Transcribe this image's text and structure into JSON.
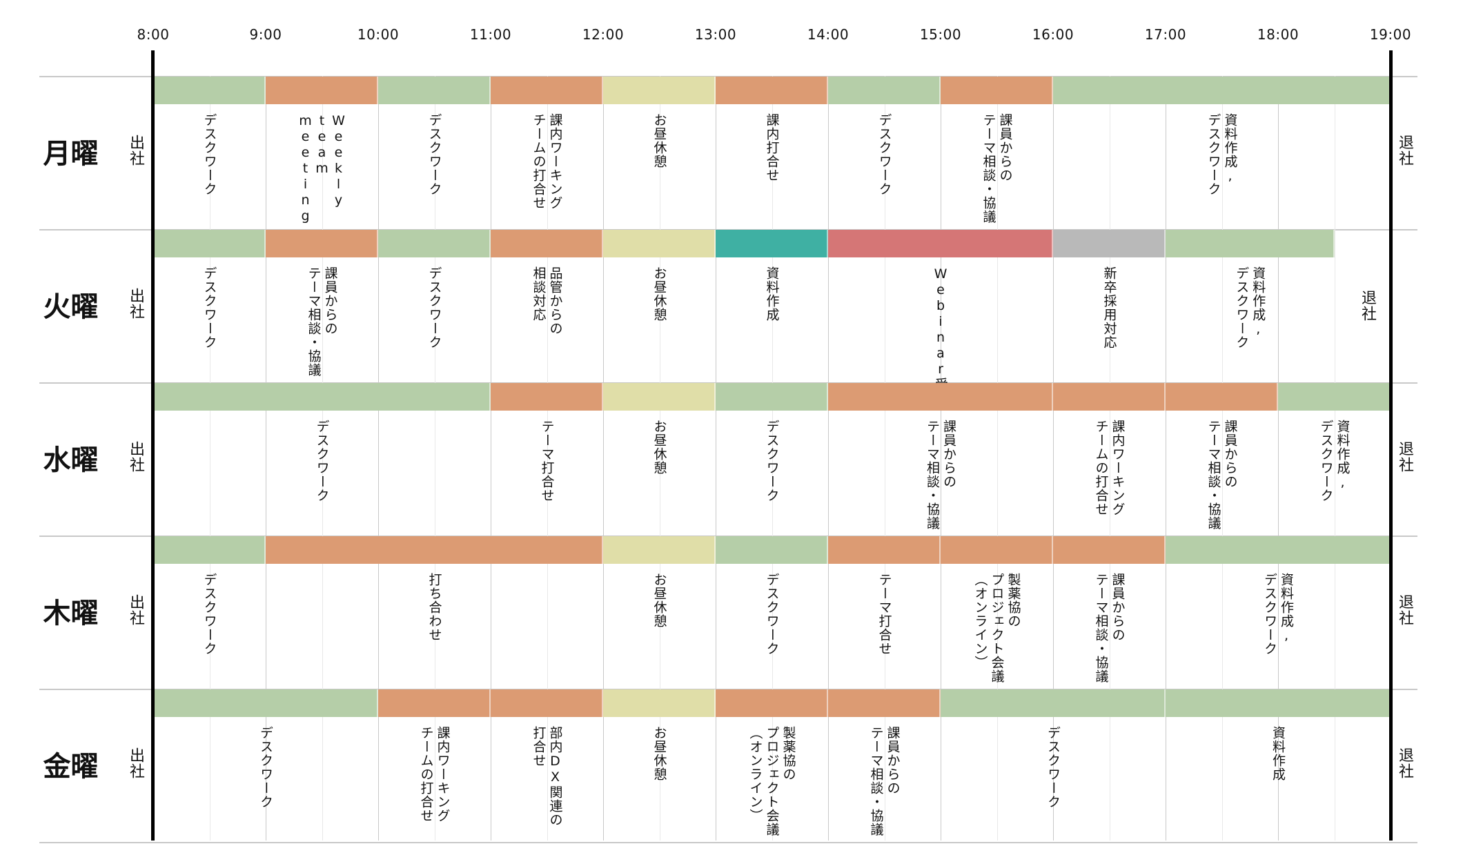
{
  "times": [
    "8:00",
    "9:00",
    "10:00",
    "11:00",
    "12:00",
    "13:00",
    "14:00",
    "15:00",
    "16:00",
    "17:00",
    "18:00",
    "19:00"
  ],
  "legend_colors": {
    "desk": "#b5cea8",
    "meeting": "#dc9b73",
    "lunch": "#e0dea8",
    "docs": "#3fb0a3",
    "webinar": "#d57676",
    "recruit": "#b9b9b9"
  },
  "days": [
    {
      "name": "月曜",
      "arrive": "出社",
      "leave": "退社",
      "segments": [
        {
          "start": 8,
          "end": 9,
          "type": "desk"
        },
        {
          "start": 9,
          "end": 10,
          "type": "meeting"
        },
        {
          "start": 10,
          "end": 11,
          "type": "desk"
        },
        {
          "start": 11,
          "end": 12,
          "type": "meeting"
        },
        {
          "start": 12,
          "end": 13,
          "type": "lunch"
        },
        {
          "start": 13,
          "end": 14,
          "type": "meeting"
        },
        {
          "start": 14,
          "end": 15,
          "type": "desk"
        },
        {
          "start": 15,
          "end": 16,
          "type": "meeting"
        },
        {
          "start": 16,
          "end": 19,
          "type": "desk"
        }
      ],
      "labels": [
        {
          "at": 8.5,
          "lines": [
            "デスクワーク"
          ]
        },
        {
          "at": 9.5,
          "lines": [
            "Weekly",
            "team",
            "meeting"
          ]
        },
        {
          "at": 10.5,
          "lines": [
            "デスクワーク"
          ]
        },
        {
          "at": 11.5,
          "lines": [
            "課内ワーキング",
            "チームの打合せ"
          ]
        },
        {
          "at": 12.5,
          "lines": [
            "お昼休憩"
          ]
        },
        {
          "at": 13.5,
          "lines": [
            "課内打合せ"
          ]
        },
        {
          "at": 14.5,
          "lines": [
            "デスクワーク"
          ]
        },
        {
          "at": 15.5,
          "lines": [
            "課員からの",
            "テーマ相談・協議"
          ]
        },
        {
          "at": 17.5,
          "lines": [
            "資料作成,",
            "デスクワーク"
          ]
        }
      ]
    },
    {
      "name": "火曜",
      "arrive": "出社",
      "leave": "退社",
      "leave_at": 18.65,
      "segments": [
        {
          "start": 8,
          "end": 9,
          "type": "desk"
        },
        {
          "start": 9,
          "end": 10,
          "type": "meeting"
        },
        {
          "start": 10,
          "end": 11,
          "type": "desk"
        },
        {
          "start": 11,
          "end": 12,
          "type": "meeting"
        },
        {
          "start": 12,
          "end": 13,
          "type": "lunch"
        },
        {
          "start": 13,
          "end": 14,
          "type": "docs"
        },
        {
          "start": 14,
          "end": 16,
          "type": "webinar"
        },
        {
          "start": 16,
          "end": 17,
          "type": "recruit"
        },
        {
          "start": 17,
          "end": 18.5,
          "type": "desk"
        }
      ],
      "labels": [
        {
          "at": 8.5,
          "lines": [
            "デスクワーク"
          ]
        },
        {
          "at": 9.5,
          "lines": [
            "課員からの",
            "テーマ相談・協議"
          ]
        },
        {
          "at": 10.5,
          "lines": [
            "デスクワーク"
          ]
        },
        {
          "at": 11.5,
          "lines": [
            "品管からの",
            "相談対応"
          ]
        },
        {
          "at": 12.5,
          "lines": [
            "お昼休憩"
          ]
        },
        {
          "at": 13.5,
          "lines": [
            "資料作成"
          ]
        },
        {
          "at": 15,
          "lines": [
            "Webinar受講"
          ]
        },
        {
          "at": 16.5,
          "lines": [
            "新卒採用対応"
          ]
        },
        {
          "at": 17.75,
          "lines": [
            "資料作成,",
            "デスクワーク"
          ]
        }
      ]
    },
    {
      "name": "水曜",
      "arrive": "出社",
      "leave": "退社",
      "segments": [
        {
          "start": 8,
          "end": 11,
          "type": "desk"
        },
        {
          "start": 11,
          "end": 12,
          "type": "meeting"
        },
        {
          "start": 12,
          "end": 13,
          "type": "lunch"
        },
        {
          "start": 13,
          "end": 14,
          "type": "desk"
        },
        {
          "start": 14,
          "end": 16,
          "type": "meeting"
        },
        {
          "start": 16,
          "end": 17,
          "type": "meeting"
        },
        {
          "start": 17,
          "end": 18,
          "type": "meeting"
        },
        {
          "start": 18,
          "end": 19,
          "type": "desk"
        }
      ],
      "labels": [
        {
          "at": 9.5,
          "lines": [
            "デスクワーク"
          ]
        },
        {
          "at": 11.5,
          "lines": [
            "テーマ打合せ"
          ]
        },
        {
          "at": 12.5,
          "lines": [
            "お昼休憩"
          ]
        },
        {
          "at": 13.5,
          "lines": [
            "デスクワーク"
          ]
        },
        {
          "at": 15,
          "lines": [
            "課員からの",
            "テーマ相談・協議"
          ]
        },
        {
          "at": 16.5,
          "lines": [
            "課内ワーキング",
            "チームの打合せ"
          ]
        },
        {
          "at": 17.5,
          "lines": [
            "課員からの",
            "テーマ相談・協議"
          ]
        },
        {
          "at": 18.5,
          "lines": [
            "資料作成,",
            "デスクワーク"
          ]
        }
      ]
    },
    {
      "name": "木曜",
      "arrive": "出社",
      "leave": "退社",
      "segments": [
        {
          "start": 8,
          "end": 9,
          "type": "desk"
        },
        {
          "start": 9,
          "end": 12,
          "type": "meeting"
        },
        {
          "start": 12,
          "end": 13,
          "type": "lunch"
        },
        {
          "start": 13,
          "end": 14,
          "type": "desk"
        },
        {
          "start": 14,
          "end": 15,
          "type": "meeting"
        },
        {
          "start": 15,
          "end": 16,
          "type": "meeting"
        },
        {
          "start": 16,
          "end": 17,
          "type": "meeting"
        },
        {
          "start": 17,
          "end": 19,
          "type": "desk"
        }
      ],
      "labels": [
        {
          "at": 8.5,
          "lines": [
            "デスクワーク"
          ]
        },
        {
          "at": 10.5,
          "lines": [
            "打ち合わせ"
          ]
        },
        {
          "at": 12.5,
          "lines": [
            "お昼休憩"
          ]
        },
        {
          "at": 13.5,
          "lines": [
            "デスクワーク"
          ]
        },
        {
          "at": 14.5,
          "lines": [
            "テーマ打合せ"
          ]
        },
        {
          "at": 15.5,
          "lines": [
            "製薬協の",
            "プロジェクト会議",
            "（オンライン）"
          ]
        },
        {
          "at": 16.5,
          "lines": [
            "課員からの",
            "テーマ相談・協議"
          ]
        },
        {
          "at": 18,
          "lines": [
            "資料作成,",
            "デスクワーク"
          ]
        }
      ]
    },
    {
      "name": "金曜",
      "arrive": "出社",
      "leave": "退社",
      "segments": [
        {
          "start": 8,
          "end": 10,
          "type": "desk"
        },
        {
          "start": 10,
          "end": 11,
          "type": "meeting"
        },
        {
          "start": 11,
          "end": 12,
          "type": "meeting"
        },
        {
          "start": 12,
          "end": 13,
          "type": "lunch"
        },
        {
          "start": 13,
          "end": 14,
          "type": "meeting"
        },
        {
          "start": 14,
          "end": 15,
          "type": "meeting"
        },
        {
          "start": 15,
          "end": 17,
          "type": "desk"
        },
        {
          "start": 17,
          "end": 19,
          "type": "desk"
        }
      ],
      "labels": [
        {
          "at": 9,
          "lines": [
            "デスクワーク"
          ]
        },
        {
          "at": 10.5,
          "lines": [
            "課内ワーキング",
            "チームの打合せ"
          ]
        },
        {
          "at": 11.5,
          "lines": [
            "部内DX関連の",
            "打合せ"
          ]
        },
        {
          "at": 12.5,
          "lines": [
            "お昼休憩"
          ]
        },
        {
          "at": 13.5,
          "lines": [
            "製薬協の",
            "プロジェクト会議",
            "（オンライン）"
          ]
        },
        {
          "at": 14.5,
          "lines": [
            "課員からの",
            "テーマ相談・協議"
          ]
        },
        {
          "at": 16,
          "lines": [
            "デスクワーク"
          ]
        },
        {
          "at": 18,
          "lines": [
            "資料作成"
          ]
        }
      ]
    }
  ]
}
